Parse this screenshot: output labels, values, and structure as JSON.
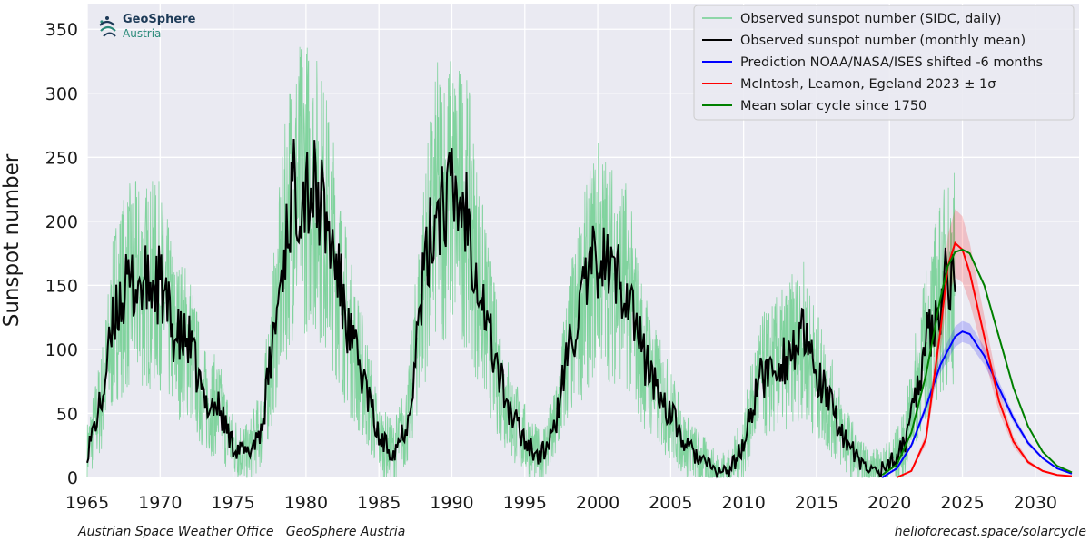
{
  "logo": {
    "title": "GeoSphere",
    "subtitle": "Austria"
  },
  "footer": {
    "left": "Austrian Space Weather Office   GeoSphere Austria",
    "right": "helioforecast.space/solarcycle"
  },
  "colors": {
    "daily": "#6fcf8f",
    "monthly": "#000000",
    "noaa": "#0000ff",
    "mcintosh": "#ff0000",
    "mean": "#008000",
    "plot_bg": "#eaeaf2",
    "grid": "#ffffff"
  },
  "chart_data": {
    "type": "line",
    "xlabel": "",
    "ylabel": "Sunspot number",
    "xlim": [
      1965,
      2033
    ],
    "ylim": [
      0,
      370
    ],
    "x_ticks": [
      "1965",
      "1970",
      "1975",
      "1980",
      "1985",
      "1990",
      "1995",
      "2000",
      "2005",
      "2010",
      "2015",
      "2020",
      "2025",
      "2030"
    ],
    "y_ticks": [
      "0",
      "50",
      "100",
      "150",
      "200",
      "250",
      "300",
      "350"
    ],
    "grid": true,
    "legend_position": "top-right",
    "monthly_mean_anchors": {
      "x": [
        1965.0,
        1966.0,
        1967.0,
        1968.0,
        1969.0,
        1970.0,
        1971.0,
        1972.0,
        1973.0,
        1974.0,
        1975.0,
        1976.0,
        1977.0,
        1978.0,
        1979.0,
        1980.0,
        1981.0,
        1982.0,
        1983.0,
        1984.0,
        1985.0,
        1986.0,
        1987.0,
        1988.0,
        1989.0,
        1990.0,
        1991.0,
        1992.0,
        1993.0,
        1994.0,
        1995.0,
        1996.0,
        1997.0,
        1998.0,
        1999.0,
        2000.0,
        2001.0,
        2002.0,
        2003.0,
        2004.0,
        2005.0,
        2006.0,
        2007.0,
        2008.0,
        2009.0,
        2010.0,
        2011.0,
        2012.0,
        2013.0,
        2014.0,
        2015.0,
        2016.0,
        2017.0,
        2018.0,
        2019.0,
        2020.0,
        2021.0,
        2022.0,
        2023.0,
        2024.0,
        2024.5
      ],
      "y": [
        20,
        60,
        135,
        150,
        150,
        150,
        110,
        105,
        60,
        55,
        25,
        18,
        40,
        130,
        220,
        230,
        215,
        170,
        110,
        75,
        30,
        20,
        45,
        150,
        215,
        220,
        210,
        145,
        90,
        50,
        30,
        15,
        35,
        100,
        140,
        175,
        160,
        150,
        100,
        70,
        50,
        25,
        15,
        5,
        5,
        25,
        75,
        85,
        95,
        110,
        80,
        55,
        30,
        10,
        5,
        10,
        25,
        80,
        125,
        155,
        160
      ]
    },
    "series": [
      {
        "name": "Observed sunspot number (SIDC, daily)",
        "style": "thin-noisy",
        "color": "#6fcf8f"
      },
      {
        "name": "Observed sunspot number (monthly mean)",
        "style": "line",
        "color": "#000000"
      },
      {
        "name": "Prediction NOAA/NASA/ISES shifted -6 months",
        "style": "line-band",
        "color": "#0000ff",
        "x": [
          2019.5,
          2020.5,
          2021.5,
          2022.5,
          2023.5,
          2024.5,
          2025.0,
          2025.5,
          2026.5,
          2027.5,
          2028.5,
          2029.5,
          2030.5,
          2031.5,
          2032.5
        ],
        "y": [
          0,
          7,
          25,
          55,
          88,
          110,
          114,
          112,
          95,
          70,
          46,
          27,
          15,
          7,
          3
        ]
      },
      {
        "name": "McIntosh, Leamon, Egeland 2023 ± 1σ",
        "style": "line-band",
        "color": "#ff0000",
        "x": [
          2020.5,
          2021.5,
          2022.5,
          2023.5,
          2024.0,
          2024.5,
          2025.0,
          2025.5,
          2026.5,
          2027.5,
          2028.5,
          2029.5,
          2030.5,
          2031.5,
          2032.5
        ],
        "y": [
          0,
          5,
          30,
          115,
          165,
          183,
          178,
          160,
          110,
          60,
          28,
          12,
          5,
          2,
          1
        ]
      },
      {
        "name": "Mean solar cycle since 1750",
        "style": "line",
        "color": "#008000",
        "x": [
          2019.5,
          2020.5,
          2021.5,
          2022.5,
          2023.5,
          2024.0,
          2024.5,
          2025.0,
          2025.5,
          2026.5,
          2027.5,
          2028.5,
          2029.5,
          2030.5,
          2031.5,
          2032.5
        ],
        "y": [
          2,
          10,
          35,
          80,
          140,
          165,
          176,
          178,
          175,
          150,
          110,
          70,
          40,
          20,
          9,
          4
        ]
      }
    ]
  }
}
